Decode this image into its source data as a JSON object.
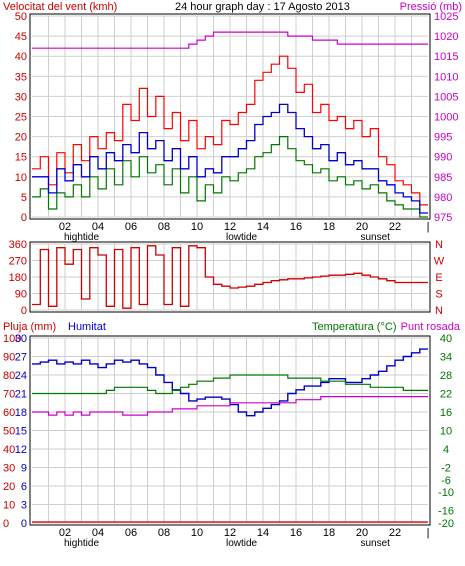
{
  "chart_data": [
    {
      "type": "line",
      "title": "24 hour graph day : 17 Agosto 2013",
      "ylabel_left": "Velocitat del vent (kmh)",
      "ylabel_right": "Pressió (mb)",
      "ylim_left": [
        0,
        50
      ],
      "ylim_right": [
        975,
        1025
      ],
      "yticks_left": [
        "0",
        "5",
        "10",
        "15",
        "20",
        "25",
        "30",
        "35",
        "40",
        "45",
        "50"
      ],
      "yticks_right": [
        "975",
        "980",
        "985",
        "990",
        "995",
        "1000",
        "1005",
        "1010",
        "1015",
        "1020",
        "1025"
      ],
      "xticks": [
        "02",
        "04",
        "06",
        "08",
        "10",
        "12",
        "14",
        "16",
        "18",
        "20",
        "22"
      ],
      "xannotations": [
        "hightide",
        "lowtide",
        "sunset"
      ],
      "grid": true,
      "colors": {
        "gust": "#ff0000",
        "wind": "#007700",
        "avg": "#0000cc",
        "pressure": "#cc00cc"
      },
      "x_hours": [
        0,
        0.5,
        1,
        1.5,
        2,
        2.5,
        3,
        3.5,
        4,
        4.5,
        5,
        5.5,
        6,
        6.5,
        7,
        7.5,
        8,
        8.5,
        9,
        9.5,
        10,
        10.5,
        11,
        11.5,
        12,
        12.5,
        13,
        13.5,
        14,
        14.5,
        15,
        15.5,
        16,
        16.5,
        17,
        17.5,
        18,
        18.5,
        19,
        19.5,
        20,
        20.5,
        21,
        21.5,
        22,
        22.5,
        23,
        23.5
      ],
      "series": [
        {
          "name": "gust",
          "values": [
            12,
            15,
            8,
            16,
            11,
            18,
            14,
            20,
            17,
            21,
            19,
            28,
            24,
            32,
            25,
            30,
            22,
            26,
            19,
            24,
            17,
            20,
            18,
            24,
            23,
            26,
            28,
            34,
            36,
            38,
            40,
            37,
            31,
            33,
            26,
            28,
            24,
            25,
            22,
            24,
            20,
            22,
            15,
            13,
            9,
            8,
            6,
            3
          ]
        },
        {
          "name": "wind",
          "values": [
            5,
            7,
            2,
            6,
            5,
            8,
            5,
            10,
            7,
            12,
            8,
            14,
            10,
            15,
            11,
            13,
            8,
            12,
            6,
            10,
            4,
            8,
            6,
            10,
            9,
            11,
            12,
            15,
            16,
            18,
            20,
            17,
            14,
            13,
            11,
            12,
            9,
            10,
            8,
            9,
            7,
            8,
            6,
            4,
            3,
            2,
            2,
            0
          ]
        },
        {
          "name": "avg",
          "values": [
            10,
            10,
            6,
            12,
            9,
            13,
            10,
            15,
            12,
            16,
            14,
            18,
            16,
            21,
            17,
            19,
            14,
            17,
            12,
            15,
            10,
            12,
            11,
            15,
            15,
            17,
            19,
            23,
            25,
            26,
            28,
            26,
            22,
            20,
            17,
            18,
            14,
            16,
            13,
            14,
            12,
            12,
            9,
            8,
            6,
            5,
            4,
            1
          ]
        },
        {
          "name": "pressure",
          "values": [
            1017,
            1017,
            1017,
            1017,
            1017,
            1017,
            1017,
            1017,
            1017,
            1017,
            1017,
            1017,
            1017,
            1017,
            1017,
            1017,
            1017,
            1017,
            1017,
            1018,
            1019,
            1020,
            1021,
            1021,
            1021,
            1021,
            1021,
            1021,
            1021,
            1021,
            1021,
            1020,
            1020,
            1020,
            1019,
            1019,
            1019,
            1018,
            1018,
            1018,
            1018,
            1018,
            1018,
            1018,
            1018,
            1018,
            1018,
            1018
          ]
        }
      ]
    },
    {
      "type": "scatter",
      "yticks_left": [
        "0",
        "90",
        "180",
        "270",
        "360"
      ],
      "yticks_right": [
        "N",
        "S",
        "E",
        "W",
        "N"
      ],
      "ylim": [
        0,
        360
      ],
      "grid": true,
      "x_hours": [
        0,
        0.5,
        1,
        1.5,
        2,
        2.5,
        3,
        3.5,
        4,
        4.5,
        5,
        5.5,
        6,
        6.5,
        7,
        7.5,
        8,
        8.5,
        9,
        9.5,
        10,
        10.5,
        11,
        11.5,
        12,
        12.5,
        13,
        13.5,
        14,
        14.5,
        15,
        15.5,
        16,
        16.5,
        17,
        17.5,
        18,
        18.5,
        19,
        19.5,
        20,
        20.5,
        21,
        21.5,
        22,
        22.5,
        23,
        23.5
      ],
      "series": [
        {
          "name": "direction",
          "color": "#cc0000",
          "values": [
            30,
            330,
            20,
            340,
            250,
            330,
            60,
            340,
            300,
            20,
            330,
            10,
            340,
            30,
            350,
            300,
            30,
            340,
            20,
            350,
            340,
            180,
            140,
            130,
            120,
            125,
            130,
            140,
            150,
            160,
            165,
            170,
            170,
            175,
            180,
            185,
            190,
            190,
            195,
            200,
            190,
            180,
            170,
            160,
            150,
            150,
            150,
            150
          ]
        }
      ]
    },
    {
      "type": "line",
      "ylabel_left_1": "Pluja (mm)",
      "ylabel_left_2": "Humitat",
      "ylabel_right_1": "Temperatura (°C)",
      "ylabel_right_2": "Punt rosada",
      "yticks_rain": [
        "0",
        "10",
        "20",
        "30",
        "40",
        "50",
        "60",
        "70",
        "80",
        "90",
        "100"
      ],
      "yticks_hum": [
        "0",
        "3",
        "6",
        "9",
        "12",
        "15",
        "18",
        "21",
        "24",
        "27",
        "30"
      ],
      "yticks_temp": [
        "-20",
        "-16",
        "-10",
        "-6",
        "-2",
        "4",
        "10",
        "16",
        "22",
        "28",
        "34",
        "40"
      ],
      "xticks": [
        "02",
        "04",
        "06",
        "08",
        "10",
        "12",
        "14",
        "16",
        "18",
        "20",
        "22"
      ],
      "xannotations": [
        "hightide",
        "lowtide",
        "sunset"
      ],
      "grid": true,
      "x_hours": [
        0,
        0.5,
        1,
        1.5,
        2,
        2.5,
        3,
        3.5,
        4,
        4.5,
        5,
        5.5,
        6,
        6.5,
        7,
        7.5,
        8,
        8.5,
        9,
        9.5,
        10,
        10.5,
        11,
        11.5,
        12,
        12.5,
        13,
        13.5,
        14,
        14.5,
        15,
        15.5,
        16,
        16.5,
        17,
        17.5,
        18,
        18.5,
        19,
        19.5,
        20,
        20.5,
        21,
        21.5,
        22,
        22.5,
        23,
        23.5
      ],
      "series": [
        {
          "name": "humitat",
          "color": "#0000cc",
          "values": [
            86,
            87,
            88,
            86,
            87,
            86,
            88,
            86,
            84,
            86,
            88,
            87,
            88,
            86,
            84,
            80,
            76,
            72,
            70,
            66,
            67,
            68,
            68,
            67,
            64,
            60,
            58,
            60,
            62,
            64,
            66,
            70,
            72,
            74,
            74,
            76,
            78,
            78,
            76,
            76,
            78,
            80,
            82,
            85,
            88,
            90,
            92,
            94
          ]
        },
        {
          "name": "temperatura",
          "color": "#007700",
          "values": [
            22,
            22,
            22,
            22,
            22,
            22,
            22,
            22,
            22,
            23,
            24,
            24,
            24,
            24,
            23,
            22,
            22,
            23,
            24,
            25,
            26,
            26,
            27,
            27,
            28,
            28,
            28,
            28,
            28,
            28,
            28,
            27,
            27,
            27,
            27,
            26,
            26,
            26,
            25,
            25,
            25,
            24,
            24,
            24,
            24,
            23,
            23,
            23
          ]
        },
        {
          "name": "punt_rosada",
          "color": "#cc00cc",
          "values": [
            16,
            16,
            15,
            16,
            15,
            16,
            15,
            16,
            16,
            16,
            16,
            15,
            15,
            15,
            16,
            16,
            16,
            17,
            17,
            17,
            18,
            18,
            18,
            18,
            19,
            19,
            19,
            19,
            19,
            19,
            19,
            19,
            20,
            20,
            20,
            21,
            21,
            21,
            21,
            21,
            21,
            21,
            21,
            21,
            21,
            21,
            21,
            21
          ]
        },
        {
          "name": "pluja",
          "color": "#cc0000",
          "values": [
            0,
            0,
            0,
            0,
            0,
            0,
            0,
            0,
            0,
            0,
            0,
            0,
            0,
            0,
            0,
            0,
            0,
            0,
            0,
            0,
            0,
            0,
            0,
            0,
            0,
            0,
            0,
            0,
            0,
            0,
            0,
            0,
            0,
            0,
            0,
            0,
            0,
            0,
            0,
            0,
            0,
            0,
            0,
            0,
            0,
            0,
            0,
            0
          ]
        }
      ]
    }
  ]
}
